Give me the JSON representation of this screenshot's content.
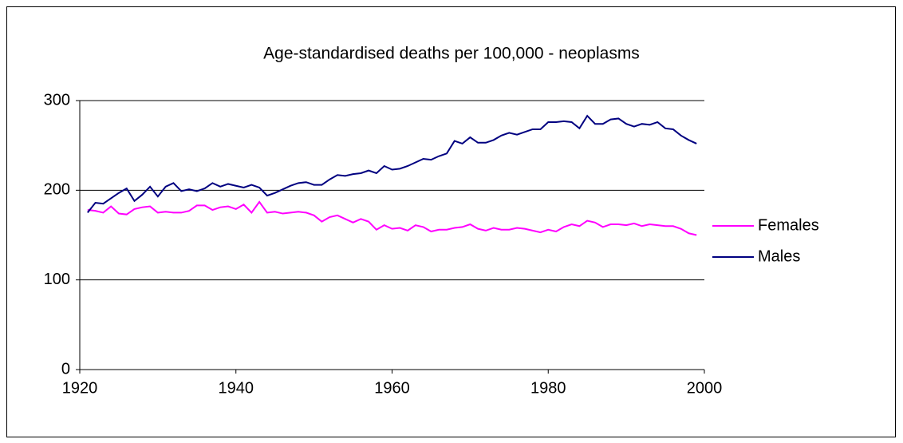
{
  "chart_data": {
    "type": "line",
    "title": "Age-standardised deaths per 100,000 - neoplasms",
    "x": [
      1921,
      1922,
      1923,
      1924,
      1925,
      1926,
      1927,
      1928,
      1929,
      1930,
      1931,
      1932,
      1933,
      1934,
      1935,
      1936,
      1937,
      1938,
      1939,
      1940,
      1941,
      1942,
      1943,
      1944,
      1945,
      1946,
      1947,
      1948,
      1949,
      1950,
      1951,
      1952,
      1953,
      1954,
      1955,
      1956,
      1957,
      1958,
      1959,
      1960,
      1961,
      1962,
      1963,
      1964,
      1965,
      1966,
      1967,
      1968,
      1969,
      1970,
      1971,
      1972,
      1973,
      1974,
      1975,
      1976,
      1977,
      1978,
      1979,
      1980,
      1981,
      1982,
      1983,
      1984,
      1985,
      1986,
      1987,
      1988,
      1989,
      1990,
      1991,
      1992,
      1993,
      1994,
      1995,
      1996,
      1997,
      1998,
      1999
    ],
    "series": [
      {
        "name": "Females",
        "color": "#ff00ff",
        "values": [
          178,
          177,
          175,
          182,
          174,
          173,
          179,
          181,
          182,
          175,
          176,
          175,
          175,
          177,
          183,
          183,
          178,
          181,
          182,
          179,
          184,
          175,
          187,
          175,
          176,
          174,
          175,
          176,
          175,
          172,
          165,
          170,
          172,
          168,
          164,
          168,
          165,
          156,
          161,
          157,
          158,
          155,
          161,
          159,
          154,
          156,
          156,
          158,
          159,
          162,
          157,
          155,
          158,
          156,
          156,
          158,
          157,
          155,
          153,
          156,
          154,
          159,
          162,
          160,
          166,
          164,
          159,
          162,
          162,
          161,
          163,
          160,
          162,
          161,
          160,
          160,
          157,
          152,
          150
        ]
      },
      {
        "name": "Males",
        "color": "#000080",
        "values": [
          175,
          186,
          185,
          191,
          197,
          202,
          188,
          195,
          204,
          193,
          204,
          208,
          199,
          201,
          199,
          202,
          208,
          204,
          207,
          205,
          203,
          206,
          203,
          194,
          197,
          201,
          205,
          208,
          209,
          206,
          206,
          212,
          217,
          216,
          218,
          219,
          222,
          219,
          227,
          223,
          224,
          227,
          231,
          235,
          234,
          238,
          241,
          255,
          252,
          259,
          253,
          253,
          256,
          261,
          264,
          262,
          265,
          268,
          268,
          276,
          276,
          277,
          276,
          269,
          283,
          274,
          274,
          279,
          280,
          274,
          271,
          274,
          273,
          276,
          269,
          268,
          261,
          256,
          252
        ]
      }
    ],
    "xlim": [
      1920,
      2000
    ],
    "xticks": [
      1920,
      1940,
      1960,
      1980,
      2000
    ],
    "ylim": [
      0,
      300
    ],
    "yticks": [
      0,
      100,
      200,
      300
    ],
    "grid": true,
    "legend": "right"
  }
}
